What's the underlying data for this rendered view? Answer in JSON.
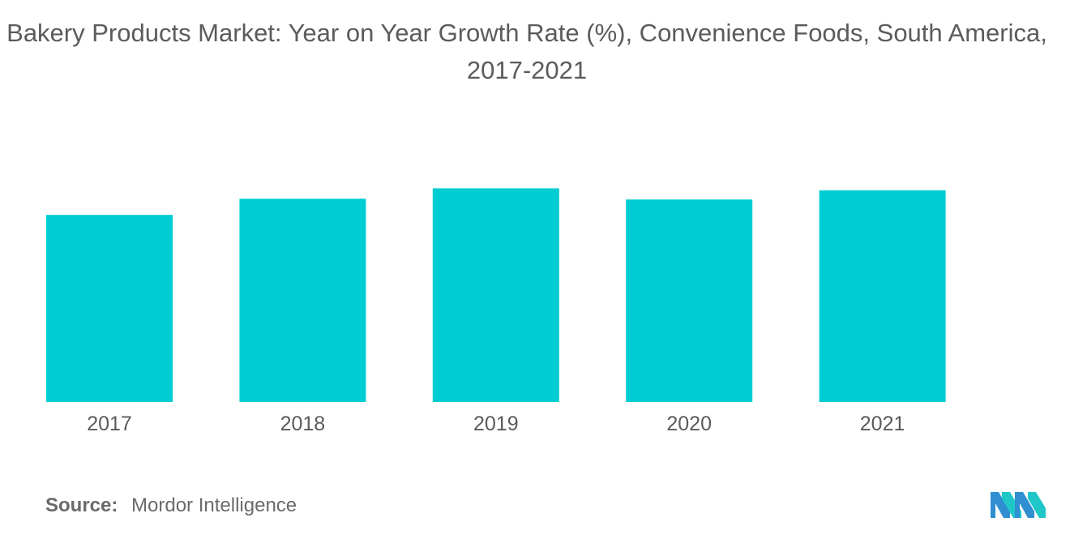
{
  "title_line1": "Bakery Products Market: Year on Year Growth Rate (%), Convenience Foods, South America,",
  "title_line2": "2017-2021",
  "source": {
    "label": "Source:",
    "text": "Mordor Intelligence"
  },
  "logo": {
    "icon": "mordor-intelligence-logo",
    "colors": [
      "#2f8fd1",
      "#1fc7c9"
    ]
  },
  "colors": {
    "bar": "#00cdd1",
    "text": "#5b5b5b"
  },
  "chart_data": {
    "type": "bar",
    "title": "Bakery Products Market: Year on Year Growth Rate (%), Convenience Foods, South America, 2017-2021",
    "xlabel": "",
    "ylabel": "",
    "categories": [
      "2017",
      "2018",
      "2019",
      "2020",
      "2021"
    ],
    "values": [
      4.86,
      5.28,
      5.55,
      5.26,
      5.5
    ],
    "ylim": [
      0,
      6
    ],
    "y_axis_visible": false,
    "grid": false,
    "legend": "none"
  }
}
